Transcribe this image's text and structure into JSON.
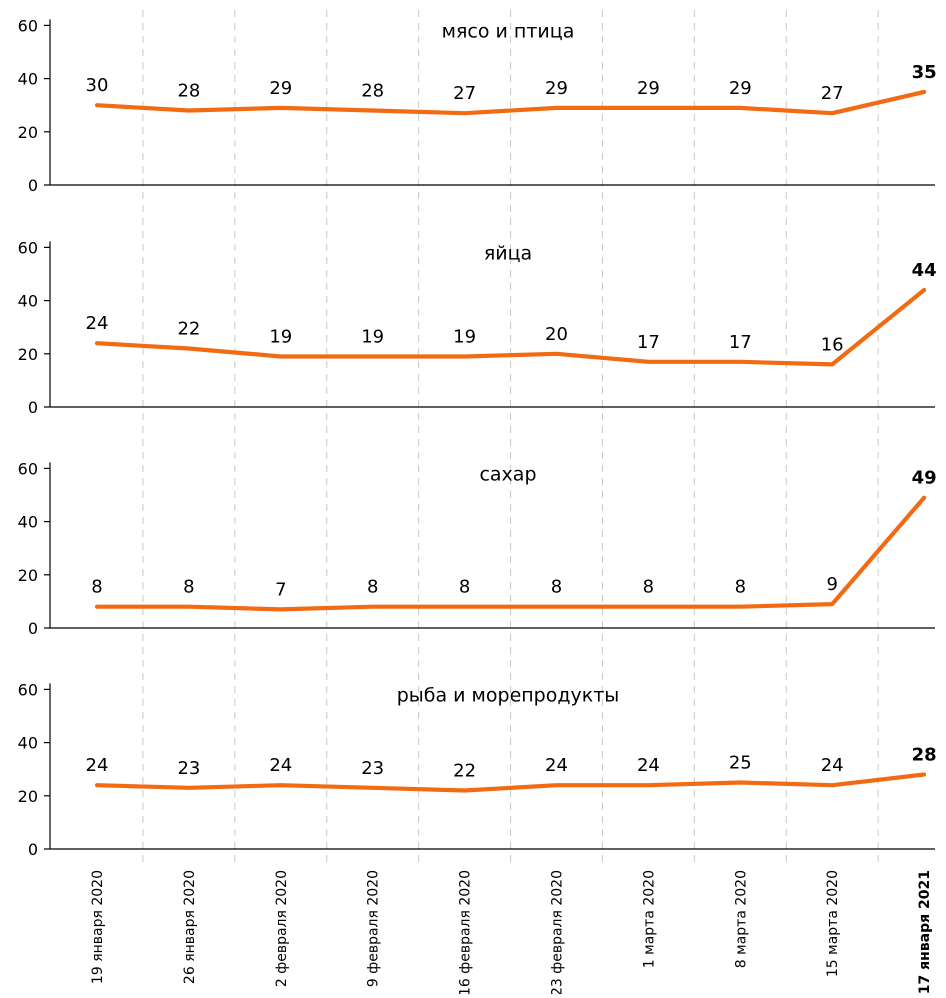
{
  "chart_data": {
    "type": "line",
    "layout": "small-multiples",
    "categories": [
      "19 января 2020",
      "26 января 2020",
      "2 февраля 2020",
      "9 февраля 2020",
      "16 февраля 2020",
      "23 февраля 2020",
      "1 марта 2020",
      "8 марта 2020",
      "15 марта 2020",
      "17 января 2021"
    ],
    "highlight_last": true,
    "ylim": [
      0,
      60
    ],
    "yticks": [
      0,
      20,
      40,
      60
    ],
    "grid": "vertical dashed",
    "line_color": "#F26B13",
    "panels": [
      {
        "title": "мясо и птица",
        "values": [
          30,
          28,
          29,
          28,
          27,
          29,
          29,
          29,
          27,
          35
        ]
      },
      {
        "title": "яйца",
        "values": [
          24,
          22,
          19,
          19,
          19,
          20,
          17,
          17,
          16,
          44
        ]
      },
      {
        "title": "сахар",
        "values": [
          8,
          8,
          7,
          8,
          8,
          8,
          8,
          8,
          9,
          49
        ]
      },
      {
        "title": "рыба и морепродукты",
        "values": [
          24,
          23,
          24,
          23,
          22,
          24,
          24,
          25,
          24,
          28
        ]
      }
    ]
  }
}
